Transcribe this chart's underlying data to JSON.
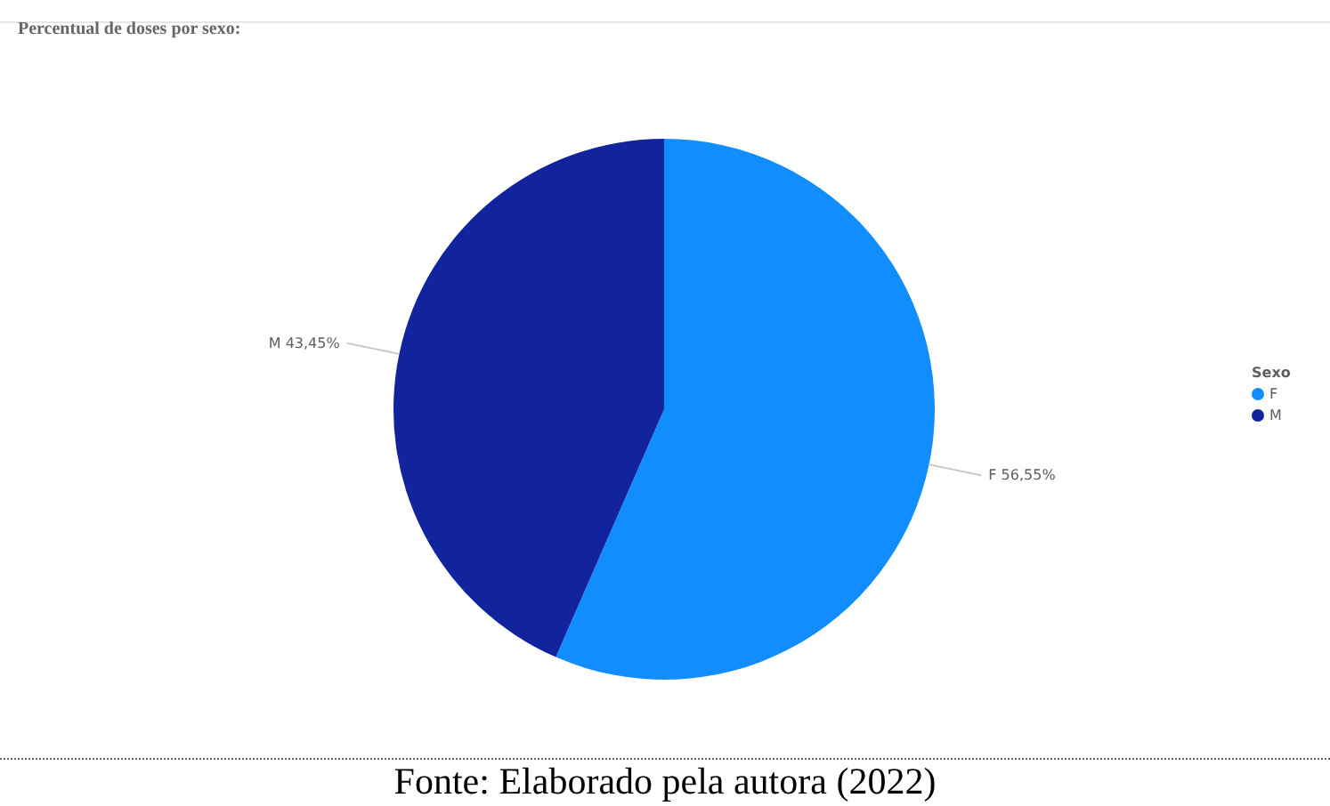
{
  "chart_data": {
    "type": "pie",
    "title": "Percentual de doses por sexo:",
    "legend_title": "Sexo",
    "categories": [
      "F",
      "M"
    ],
    "values": [
      56.55,
      43.45
    ],
    "colors": [
      "#118dff",
      "#12239e"
    ],
    "value_labels": [
      "F 56,55%",
      "M 43,45%"
    ],
    "legend": "right",
    "annotations": [
      "Fonte: Elaborado pela autora (2022)"
    ]
  }
}
